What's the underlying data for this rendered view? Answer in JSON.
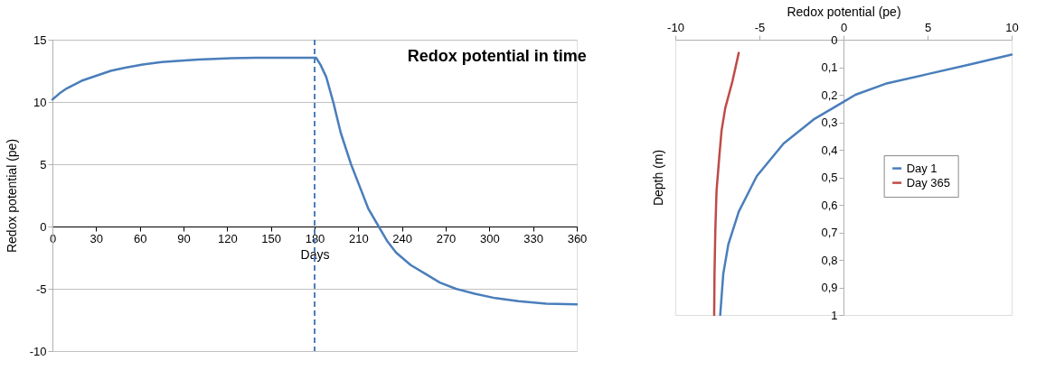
{
  "chart_data": [
    {
      "type": "line",
      "title": "Redox potential in time",
      "xlabel": "Days",
      "ylabel": "Redox potential (pe)",
      "xlim": [
        0,
        360
      ],
      "xticks": [
        0,
        30,
        60,
        90,
        120,
        150,
        180,
        210,
        240,
        270,
        300,
        330,
        360
      ],
      "ylim": [
        -10,
        15
      ],
      "yticks": [
        -10,
        -5,
        0,
        5,
        10,
        15
      ],
      "grid": "y",
      "series": [
        {
          "color": "#4a7ebb",
          "x": [
            0,
            5,
            10,
            20,
            30,
            40,
            50,
            62,
            75,
            86,
            100,
            119,
            140,
            160,
            181,
            184,
            188,
            193,
            198,
            205,
            211,
            217,
            224,
            230,
            236,
            246,
            256,
            266,
            277,
            290,
            304,
            320,
            339,
            360
          ],
          "values": [
            10.2,
            10.7,
            11.1,
            11.7,
            12.1,
            12.5,
            12.75,
            13.0,
            13.2,
            13.3,
            13.4,
            13.5,
            13.55,
            13.55,
            13.55,
            13.0,
            12.0,
            9.9,
            7.5,
            5.0,
            3.2,
            1.4,
            0,
            -1.2,
            -2.1,
            -3.1,
            -3.8,
            -4.5,
            -5.0,
            -5.4,
            -5.75,
            -6.0,
            -6.2,
            -6.25
          ]
        }
      ],
      "ref_lines": [
        {
          "axis": "x",
          "value": 180,
          "color": "#4a7ebb",
          "line_style": "dashed"
        }
      ]
    },
    {
      "type": "line",
      "xlabel": "Redox potential (pe)",
      "ylabel": "Depth (m)",
      "xlim": [
        -10,
        10
      ],
      "xticks": [
        -10,
        -5,
        0,
        5,
        10
      ],
      "ylim": [
        1,
        0
      ],
      "yticks": [
        0,
        {
          "value": 0.1,
          "label": "0,1"
        },
        {
          "value": 0.2,
          "label": "0,2"
        },
        {
          "value": 0.3,
          "label": "0,3"
        },
        {
          "value": 0.4,
          "label": "0,4"
        },
        {
          "value": 0.5,
          "label": "0,5"
        },
        {
          "value": 0.6,
          "label": "0,6"
        },
        {
          "value": 0.7,
          "label": "0,7"
        },
        {
          "value": 0.8,
          "label": "0,8"
        },
        {
          "value": 0.9,
          "label": "0,9"
        },
        1
      ],
      "legend": "right",
      "series": [
        {
          "name": "Day 1",
          "color": "#4a7ebb",
          "x": [
            10,
            7.5,
            5,
            2.5,
            0.71,
            0,
            -1.78,
            -3.56,
            -5.16,
            -6.23,
            -6.85,
            -7.15,
            -7.33
          ],
          "values": [
            0.054,
            0.09,
            0.125,
            0.16,
            0.2,
            0.226,
            0.29,
            0.377,
            0.496,
            0.625,
            0.744,
            0.851,
            1.0
          ]
        },
        {
          "name": "Day 365",
          "color": "#be4b48",
          "x": [
            -6.23,
            -6.6,
            -7.03,
            -7.25,
            -7.38,
            -7.55,
            -7.62,
            -7.67,
            -7.69
          ],
          "values": [
            0.048,
            0.15,
            0.248,
            0.33,
            0.42,
            0.55,
            0.69,
            0.85,
            1.0
          ]
        }
      ]
    }
  ]
}
